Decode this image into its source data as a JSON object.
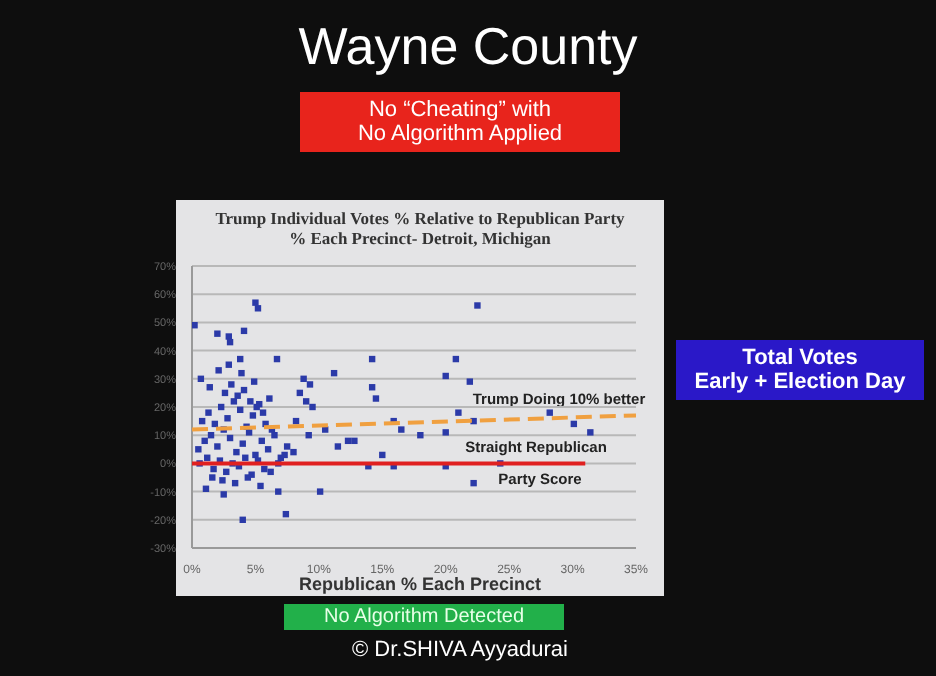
{
  "chart_data": {
    "type": "scatter",
    "title": "Wayne County",
    "subtitle": "Trump Individual Votes % Relative to Republican Party\n% Each Precinct- Detroit, Michigan",
    "xlabel": "Republican % Each Precinct",
    "annotations": [
      "No “Cheating” with\nNo Algorithm Applied",
      "Total Votes\nEarly + Election Day",
      "No Algorithm Detected",
      "© Dr.SHIVA Ayyadurai",
      "Trump Doing 10% better",
      "Straight Republican",
      "Party Score"
    ],
    "xlim": [
      0,
      35
    ],
    "xticks": [
      {
        "value": 0,
        "label": "0%"
      },
      {
        "value": 5,
        "label": "5%"
      },
      {
        "value": 10,
        "label": "10%"
      },
      {
        "value": 15,
        "label": "15%"
      },
      {
        "value": 20,
        "label": "20%"
      },
      {
        "value": 25,
        "label": "25%"
      },
      {
        "value": 30,
        "label": "30%"
      },
      {
        "value": 35,
        "label": "35%"
      }
    ],
    "ylim": [
      -30,
      70
    ],
    "yticks": [
      {
        "value": -30,
        "label": "-30%"
      },
      {
        "value": -20,
        "label": "-20%"
      },
      {
        "value": -10,
        "label": "-10%"
      },
      {
        "value": 0,
        "label": "0%"
      },
      {
        "value": 10,
        "label": "10%"
      },
      {
        "value": 20,
        "label": "20%"
      },
      {
        "value": 30,
        "label": "30%"
      },
      {
        "value": 40,
        "label": "40%"
      },
      {
        "value": 50,
        "label": "50%"
      },
      {
        "value": 60,
        "label": "60%"
      },
      {
        "value": 70,
        "label": "70%"
      }
    ],
    "grid": "y",
    "marker": "square",
    "series": [
      {
        "color": "#2b3aa8",
        "x": [
          5.0,
          5.2,
          22.5,
          0.2,
          2.0,
          2.9,
          3.0,
          4.1,
          3.8,
          6.7,
          14.2,
          20.8,
          11.2,
          20.0,
          21.9,
          8.8,
          9.3,
          14.2,
          14.5,
          21.0,
          28.2,
          31.4,
          30.1,
          22.2,
          15.9,
          20.0,
          18.0,
          12.3,
          15.0,
          15.9,
          13.9,
          20.0,
          24.3,
          22.2,
          1.1,
          2.5,
          7.4,
          4.0,
          10.1,
          6.8,
          0.5,
          1.0,
          1.5,
          2.0,
          2.5,
          3.0,
          3.5,
          4.0,
          4.5,
          5.0,
          5.5,
          6.0,
          6.5,
          7.0,
          7.5,
          8.0,
          0.8,
          1.3,
          1.8,
          2.3,
          2.8,
          3.3,
          3.8,
          4.3,
          4.8,
          5.3,
          5.8,
          6.3,
          0.6,
          1.2,
          1.7,
          2.2,
          2.7,
          3.2,
          3.7,
          4.2,
          4.7,
          5.2,
          5.7,
          6.2,
          6.8,
          7.3,
          8.5,
          9.0,
          9.5,
          10.5,
          0.7,
          1.4,
          2.1,
          2.6,
          3.1,
          3.6,
          4.1,
          4.6,
          5.1,
          5.6,
          6.1,
          1.6,
          2.4,
          3.4,
          4.4,
          5.4,
          2.9,
          3.9,
          4.9,
          8.2,
          9.2,
          11.5,
          12.8,
          16.5
        ],
        "values": [
          57,
          55,
          56,
          49,
          46,
          45,
          43,
          47,
          37,
          37,
          37,
          37,
          32,
          31,
          29,
          30,
          28,
          27,
          23,
          18,
          18,
          11,
          14,
          15,
          15,
          11,
          10,
          8,
          3,
          -1,
          -1,
          -1,
          0,
          -7,
          -9,
          -11,
          -18,
          -20,
          -10,
          -10,
          5,
          8,
          10,
          6,
          12,
          9,
          4,
          7,
          11,
          3,
          8,
          5,
          10,
          2,
          6,
          4,
          15,
          18,
          14,
          20,
          16,
          22,
          19,
          13,
          17,
          21,
          14,
          12,
          0,
          2,
          -2,
          1,
          -3,
          0,
          -1,
          2,
          -4,
          1,
          -2,
          -3,
          0,
          3,
          25,
          22,
          20,
          12,
          30,
          27,
          33,
          25,
          28,
          24,
          26,
          22,
          20,
          18,
          23,
          -5,
          -6,
          -7,
          -5,
          -8,
          35,
          32,
          29,
          15,
          10,
          6,
          8,
          12
        ]
      },
      {
        "type": "line",
        "marker": "none",
        "color": "#f0a040",
        "line_style": "dashed",
        "x": [
          0,
          35
        ],
        "values": [
          12,
          17
        ]
      },
      {
        "type": "line",
        "marker": "none",
        "color": "#e02020",
        "line_style": "solid",
        "x": [
          0,
          31
        ],
        "values": [
          0,
          0
        ]
      }
    ]
  }
}
